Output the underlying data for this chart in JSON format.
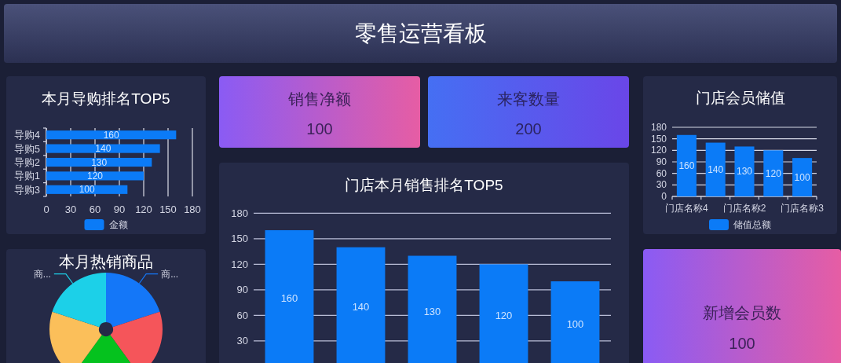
{
  "chart_data": [
    {
      "type": "other",
      "title": "零售运营看板"
    },
    {
      "type": "bar",
      "title": "本月导购排名TOP5",
      "orientation": "horizontal",
      "categories": [
        "导购4",
        "导购5",
        "导购2",
        "导购1",
        "导购3"
      ],
      "series": [
        {
          "name": "金额",
          "color": "#0b7bf7",
          "values": [
            160,
            140,
            130,
            120,
            100
          ]
        }
      ],
      "xlim": [
        0,
        180
      ],
      "xticks": [
        0,
        30,
        60,
        90,
        120,
        150,
        180
      ],
      "grid": "x",
      "legend": "bottom",
      "data_labels": true
    },
    {
      "type": "other",
      "title": "销售净额",
      "annotations": [
        "100"
      ]
    },
    {
      "type": "other",
      "title": "来客数量",
      "annotations": [
        "200"
      ]
    },
    {
      "type": "bar",
      "title": "门店会员储值",
      "categories": [
        "门店名称4",
        null,
        "门店名称2",
        null,
        "门店名称3"
      ],
      "series": [
        {
          "name": "储值总额",
          "color": "#0b7bf7",
          "values": [
            160,
            140,
            130,
            120,
            100
          ]
        }
      ],
      "ylim": [
        0,
        180
      ],
      "yticks": [
        0,
        30,
        60,
        90,
        120,
        150,
        180
      ],
      "grid": "y",
      "legend": "bottom",
      "data_labels": true
    },
    {
      "type": "bar",
      "title": "门店本月销售排名TOP5",
      "categories": [
        null,
        null,
        null,
        null,
        null
      ],
      "series": [
        {
          "color": "#0b7bf7",
          "values": [
            160,
            140,
            130,
            120,
            100
          ]
        }
      ],
      "ylim": [
        0,
        180
      ],
      "yticks": [
        30,
        60,
        90,
        120,
        150,
        180
      ],
      "grid": "y",
      "tick_labels": "y",
      "data_labels": true
    },
    {
      "type": "donut",
      "title": "本月热销商品",
      "categories": [
        "商...",
        null,
        null,
        null,
        "商..."
      ],
      "values": [
        20,
        20,
        20,
        20,
        20
      ],
      "colors": [
        "#1477f8",
        "#f5555a",
        "#05c21e",
        "#fbbf5a",
        "#1cd0e8"
      ]
    },
    {
      "type": "other",
      "title": "新增会员数",
      "annotations": [
        "100"
      ]
    }
  ]
}
